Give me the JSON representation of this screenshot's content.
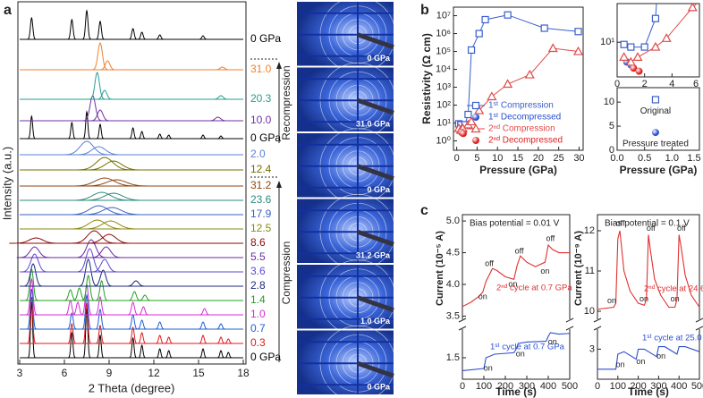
{
  "panels": [
    "a",
    "b",
    "c"
  ],
  "chart_data": [
    {
      "type": "pattern",
      "x_label": "2 Theta (degree)",
      "y_label": "Intensity (a.u.)",
      "xlim": [
        3,
        18
      ],
      "xticks": [
        3,
        6,
        9,
        12,
        15,
        18
      ],
      "annotations": [
        "Compression",
        "Recompression"
      ],
      "series": [
        {
          "name": "0 GPa",
          "color": "#000000",
          "width": 0.07,
          "x": [
            3.8,
            6.5,
            7.5,
            8.4,
            10.6,
            11.2,
            12.4,
            13.0,
            15.3,
            16.5,
            17.0
          ],
          "values": [
            62,
            28,
            55,
            25,
            22,
            14,
            10,
            8,
            10,
            8,
            6
          ]
        },
        {
          "name": "0.3",
          "color": "#e0191c",
          "width": 0.08,
          "x": [
            3.8,
            6.5,
            7.5,
            8.4,
            10.6,
            11.2,
            12.4,
            13.0,
            15.3,
            16.5,
            17.0
          ],
          "values": [
            52,
            22,
            45,
            20,
            18,
            12,
            9,
            7,
            9,
            7,
            5
          ]
        },
        {
          "name": "0.7",
          "color": "#1f5fd6",
          "width": 0.09,
          "x": [
            3.8,
            6.5,
            7.5,
            8.4,
            10.6,
            11.2,
            12.4,
            15.3,
            16.5
          ],
          "values": [
            45,
            18,
            38,
            22,
            16,
            10,
            8,
            8,
            6
          ]
        },
        {
          "name": "1.0",
          "color": "#d62ad6",
          "width": 0.1,
          "x": [
            3.8,
            6.4,
            6.9,
            7.5,
            8.4,
            10.6,
            11.3,
            15.4
          ],
          "values": [
            40,
            16,
            14,
            34,
            20,
            14,
            9,
            7
          ]
        },
        {
          "name": "1.4",
          "color": "#22a022",
          "width": 0.12,
          "x": [
            3.8,
            6.4,
            7.0,
            7.6,
            8.5,
            10.7,
            11.4
          ],
          "values": [
            35,
            12,
            14,
            28,
            22,
            10,
            6
          ]
        },
        {
          "name": "2.8",
          "color": "#1a2a7a",
          "width": 0.18,
          "x": [
            3.9,
            7.6,
            8.6,
            10.8
          ],
          "values": [
            25,
            30,
            18,
            6
          ]
        },
        {
          "name": "3.6",
          "color": "#5a4ad0",
          "width": 0.25,
          "x": [
            4.0,
            7.7,
            8.7
          ],
          "values": [
            20,
            26,
            14
          ]
        },
        {
          "name": "5.5",
          "color": "#6a2aa0",
          "width": 0.3,
          "x": [
            4.0,
            7.8,
            8.8
          ],
          "values": [
            12,
            20,
            12
          ]
        },
        {
          "name": "8.6",
          "color": "#8a0a0a",
          "width": 0.45,
          "x": [
            4.1,
            8.0,
            9.0
          ],
          "values": [
            6,
            14,
            10
          ]
        },
        {
          "name": "12.5",
          "color": "#8a8a10",
          "width": 0.55,
          "x": [
            8.2,
            9.1
          ],
          "values": [
            10,
            9
          ]
        },
        {
          "name": "17.9",
          "color": "#3a60c0",
          "width": 0.6,
          "x": [
            8.3,
            9.2
          ],
          "values": [
            10,
            8
          ]
        },
        {
          "name": "23.6",
          "color": "#2a8a7a",
          "width": 0.6,
          "x": [
            8.5,
            9.3
          ],
          "values": [
            9,
            8
          ]
        },
        {
          "name": "31.2",
          "color": "#8b4513",
          "width": 0.65,
          "x": [
            8.7,
            9.5
          ],
          "values": [
            9,
            7
          ]
        },
        {
          "name": "12.4",
          "color": "#707000",
          "width": 0.55,
          "x": [
            8.7,
            9.3
          ],
          "values": [
            14,
            10
          ]
        },
        {
          "name": "2.0",
          "color": "#5b7fd6",
          "width": 0.45,
          "x": [
            7.5,
            8.3
          ],
          "values": [
            15,
            9
          ]
        },
        {
          "name": "0 GPa",
          "color": "#000000",
          "width": 0.07,
          "x": [
            3.8,
            6.5,
            7.5,
            8.4,
            10.6,
            11.2,
            12.4,
            13.0,
            15.3,
            16.5
          ],
          "values": [
            25,
            18,
            30,
            16,
            12,
            8,
            5,
            4,
            4,
            3
          ]
        },
        {
          "name": "10.0",
          "color": "#7030a0",
          "width": 0.18,
          "x": [
            7.9,
            8.4,
            16.3
          ],
          "values": [
            28,
            12,
            4
          ]
        },
        {
          "name": "20.3",
          "color": "#2a9d8f",
          "width": 0.15,
          "x": [
            8.2,
            8.7,
            16.5
          ],
          "values": [
            30,
            10,
            4
          ]
        },
        {
          "name": "31.0",
          "color": "#f08030",
          "width": 0.15,
          "x": [
            8.4,
            8.9,
            16.6
          ],
          "values": [
            30,
            10,
            3
          ]
        },
        {
          "name": "0 GPa",
          "color": "#000000",
          "width": 0.08,
          "x": [
            3.8,
            6.5,
            7.5,
            8.4,
            10.6,
            11.2,
            12.4,
            15.3
          ],
          "values": [
            24,
            22,
            32,
            20,
            12,
            8,
            5,
            4
          ]
        }
      ]
    },
    {
      "type": "images",
      "labels": [
        "0 GPa",
        "31.0 GPa",
        "0 GPa",
        "31.2 GPa",
        "1.0 GPa",
        "0 GPa"
      ]
    },
    {
      "type": "scatter-line",
      "x_label": "Pressure (GPa)",
      "y_label": "Resistivity (Ω cm)",
      "log_y": true,
      "xlim": [
        -0.8,
        31
      ],
      "xticks": [
        0,
        5,
        10,
        15,
        20,
        25,
        30
      ],
      "ylim": [
        0.3,
        30000000
      ],
      "yticks": [
        {
          "value": 1,
          "label": "10⁰"
        },
        {
          "value": 10,
          "label": "10¹"
        },
        {
          "value": 100,
          "label": "10²"
        },
        {
          "value": 1000,
          "label": "10³"
        },
        {
          "value": 10000,
          "label": "10⁴"
        },
        {
          "value": 100000,
          "label": "10⁵"
        },
        {
          "value": 1000000,
          "label": "10⁶"
        },
        {
          "value": 10000000,
          "label": "10⁷"
        }
      ],
      "legend": "bottom-right",
      "series": [
        {
          "name": "1ˢᵗ Compression",
          "color": "#3a5fcd",
          "marker": "open-square",
          "line": true,
          "x": [
            0.5,
            1.0,
            2.0,
            2.8,
            3.6,
            5.5,
            7.0,
            12.5,
            21.5,
            29.8
          ],
          "values": [
            9,
            8,
            8,
            30,
            120000,
            1000000,
            6000000,
            11000000,
            2000000,
            1300000
          ]
        },
        {
          "name": "1ˢᵗ Decompressed",
          "color": "#2a4fd0",
          "marker": "sphere",
          "line": false,
          "x": [
            0.7,
            1.0
          ],
          "values": [
            4,
            3.5
          ]
        },
        {
          "name": "2ⁿᵈ Compression",
          "color": "#e04a4a",
          "marker": "open-triangle",
          "line": true,
          "x": [
            0.5,
            1.0,
            1.5,
            2.8,
            3.6,
            5.5,
            8.6,
            12.5,
            17.9,
            23.6,
            29.8
          ],
          "values": [
            5,
            4,
            5,
            8,
            12,
            50,
            300,
            1500,
            5000,
            150000,
            100000
          ]
        },
        {
          "name": "2ⁿᵈ Decompressed",
          "color": "#e02020",
          "marker": "sphere",
          "line": false,
          "x": [
            1.2,
            1.6
          ],
          "values": [
            3,
            2.6
          ]
        }
      ]
    },
    {
      "type": "inset",
      "log_y": true,
      "xlim": [
        0,
        6
      ],
      "xticks": [
        0,
        2,
        4,
        6
      ],
      "ylim": [
        2,
        60
      ],
      "yticks": [
        {
          "value": 10,
          "label": "10¹"
        }
      ]
    },
    {
      "type": "marker-legend",
      "x_label": "Pressure (GPa)",
      "xlim": [
        0,
        1.5
      ],
      "xticks": [
        {
          "value": 0,
          "label": "0.0"
        },
        0.5,
        {
          "value": 1,
          "label": "1.0"
        },
        1.5
      ],
      "ylim": [
        0,
        13
      ],
      "yticks": [
        0,
        5,
        10
      ],
      "series": [
        {
          "name": "Original",
          "color": "#3a5fcd",
          "marker": "open-square",
          "x": [
            0.7
          ],
          "values": [
            10.5
          ]
        },
        {
          "name": "Pressure treated",
          "color": "#2a4fd0",
          "marker": "sphere",
          "x": [
            0.7
          ],
          "values": [
            3.7
          ]
        }
      ]
    },
    {
      "type": "broken-line",
      "title": "Bias potential = 0.01 V",
      "x_label": "Time (s)",
      "y_label": "Current (10⁻⁵ A)",
      "xlim": [
        0,
        500
      ],
      "xticks": [
        0,
        100,
        200,
        300,
        400,
        500
      ],
      "ylim": [
        3.45,
        5.1
      ],
      "yticks": [
        3.5,
        {
          "value": 4,
          "label": "4.0"
        },
        4.5,
        {
          "value": 5,
          "label": "5.0"
        }
      ],
      "ylim_lower": [
        1.2,
        1.9
      ],
      "yticks_lower": [
        1.5
      ],
      "annotations": [
        "on",
        "off",
        "on",
        "off",
        "on",
        "off",
        "on",
        "on",
        "on"
      ],
      "series": [
        {
          "name": "2ⁿᵈ cycle at 0.7 GPa",
          "color": "#e03030",
          "axis": "upper",
          "x": [
            0,
            40,
            80,
            95,
            110,
            140,
            160,
            200,
            240,
            255,
            270,
            300,
            340,
            385,
            400,
            420,
            450,
            500
          ],
          "values": [
            3.65,
            3.72,
            3.82,
            3.88,
            4.05,
            4.25,
            4.22,
            4.12,
            4.08,
            4.3,
            4.45,
            4.35,
            4.28,
            4.35,
            4.62,
            4.55,
            4.5,
            4.5
          ]
        },
        {
          "name": "1ˢᵗ cycle at 0.7 GPa",
          "color": "#2a4fd0",
          "axis": "lower",
          "x": [
            0,
            100,
            110,
            150,
            240,
            250,
            260,
            300,
            390,
            400,
            410,
            450,
            500
          ],
          "values": [
            1.32,
            1.35,
            1.5,
            1.55,
            1.57,
            1.62,
            1.7,
            1.72,
            1.73,
            1.8,
            1.85,
            1.83,
            1.84
          ]
        }
      ]
    },
    {
      "type": "broken-line",
      "title": "Bias potential = 0.1 V",
      "x_label": "Time (s)",
      "y_label": "Current (10⁻⁹ A)",
      "xlim": [
        0,
        500
      ],
      "xticks": [
        0,
        100,
        200,
        300,
        400,
        500
      ],
      "ylim": [
        9.8,
        12.4
      ],
      "yticks": [
        10,
        11,
        12
      ],
      "ylim_lower": [
        2.4,
        3.4
      ],
      "yticks_lower": [
        3
      ],
      "annotations": [
        "on",
        "off",
        "on",
        "off",
        "on",
        "off",
        "on",
        "on",
        "on"
      ],
      "series": [
        {
          "name": "2ⁿᵈ cycle at 24.6 GPa",
          "color": "#e03030",
          "axis": "upper",
          "x": [
            0,
            80,
            90,
            100,
            110,
            130,
            160,
            200,
            230,
            240,
            250,
            260,
            280,
            310,
            350,
            380,
            390,
            400,
            410,
            430,
            460,
            500
          ],
          "values": [
            10.05,
            10.1,
            10.2,
            11.8,
            12.0,
            11.0,
            10.5,
            10.2,
            10.15,
            10.3,
            11.9,
            11.5,
            10.8,
            10.4,
            10.1,
            10.1,
            10.3,
            11.9,
            11.6,
            10.9,
            10.4,
            10.1
          ]
        },
        {
          "name": "1ˢᵗ cycle at 25.0 GPa",
          "color": "#2a4fd0",
          "axis": "lower",
          "x": [
            0,
            90,
            100,
            130,
            190,
            200,
            230,
            290,
            300,
            330,
            390,
            400,
            430,
            500
          ],
          "values": [
            2.6,
            2.6,
            2.9,
            2.95,
            2.8,
            3.0,
            3.0,
            2.85,
            3.05,
            3.05,
            2.9,
            3.05,
            3.05,
            2.95
          ]
        }
      ]
    }
  ]
}
